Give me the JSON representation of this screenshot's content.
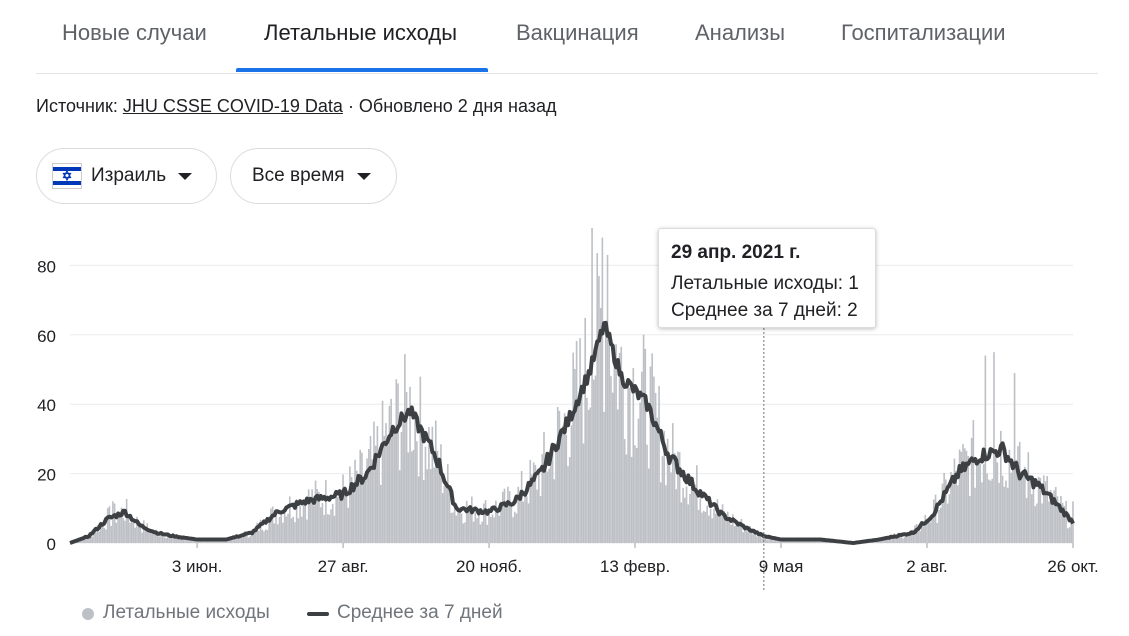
{
  "tabs": [
    {
      "label": "Новые случаи",
      "active": false
    },
    {
      "label": "Летальные исходы",
      "active": true
    },
    {
      "label": "Вакцинация",
      "active": false
    },
    {
      "label": "Анализы",
      "active": false
    },
    {
      "label": "Госпитализации",
      "active": false
    }
  ],
  "source": {
    "prefix": "Источник:",
    "link": "JHU CSSE COVID-19 Data",
    "updated": "· Обновлено 2 дня назад"
  },
  "filters": {
    "country": "Израиль",
    "country_flag_icon": "israel-flag-icon",
    "period": "Все время"
  },
  "tooltip": {
    "date": "29 апр. 2021 г.",
    "deaths_label": "Летальные исходы:",
    "deaths_value": "1",
    "avg_label": "Среднее за 7 дней:",
    "avg_value": "2"
  },
  "legend": {
    "bars": "Летальные исходы",
    "line": "Среднее за 7 дней"
  },
  "colors": {
    "bars": "#bdc1c6",
    "line": "#3c4043",
    "accent": "#1a73e8",
    "grid": "#ebebeb"
  },
  "chart_data": {
    "type": "bar",
    "ylim": [
      0,
      90
    ],
    "y_ticks": [
      0,
      20,
      40,
      60,
      80
    ],
    "x_tick_labels": [
      {
        "date": "2020-06-03",
        "label": "3 июн."
      },
      {
        "date": "2020-08-27",
        "label": "27 авг."
      },
      {
        "date": "2020-11-20",
        "label": "20 нояб."
      },
      {
        "date": "2021-02-13",
        "label": "13 февр."
      },
      {
        "date": "2021-05-09",
        "label": "9 мая"
      },
      {
        "date": "2021-08-02",
        "label": "2 авг."
      },
      {
        "date": "2021-10-26",
        "label": "26 окт."
      }
    ],
    "date_range": [
      "2020-03-21",
      "2021-10-26"
    ],
    "hover_date": "2021-04-29",
    "series": [
      {
        "name": "Среднее за 7 дней",
        "kind": "line",
        "points": [
          [
            "2020-03-21",
            0
          ],
          [
            "2020-04-01",
            2
          ],
          [
            "2020-04-12",
            7
          ],
          [
            "2020-04-22",
            9
          ],
          [
            "2020-05-01",
            5
          ],
          [
            "2020-05-10",
            3
          ],
          [
            "2020-05-20",
            2
          ],
          [
            "2020-06-03",
            1
          ],
          [
            "2020-06-20",
            1
          ],
          [
            "2020-07-05",
            3
          ],
          [
            "2020-07-20",
            9
          ],
          [
            "2020-08-05",
            12
          ],
          [
            "2020-08-27",
            14
          ],
          [
            "2020-09-10",
            20
          ],
          [
            "2020-09-25",
            33
          ],
          [
            "2020-10-05",
            38
          ],
          [
            "2020-10-20",
            25
          ],
          [
            "2020-11-01",
            10
          ],
          [
            "2020-11-20",
            9
          ],
          [
            "2020-12-05",
            12
          ],
          [
            "2020-12-20",
            20
          ],
          [
            "2021-01-05",
            35
          ],
          [
            "2021-01-18",
            50
          ],
          [
            "2021-01-26",
            63
          ],
          [
            "2021-02-05",
            48
          ],
          [
            "2021-02-20",
            40
          ],
          [
            "2021-03-05",
            25
          ],
          [
            "2021-03-20",
            16
          ],
          [
            "2021-04-05",
            8
          ],
          [
            "2021-04-20",
            4
          ],
          [
            "2021-04-29",
            2
          ],
          [
            "2021-05-09",
            1
          ],
          [
            "2021-06-01",
            1
          ],
          [
            "2021-06-20",
            0
          ],
          [
            "2021-07-05",
            1
          ],
          [
            "2021-07-25",
            3
          ],
          [
            "2021-08-05",
            8
          ],
          [
            "2021-08-20",
            20
          ],
          [
            "2021-09-01",
            25
          ],
          [
            "2021-09-15",
            27
          ],
          [
            "2021-09-25",
            20
          ],
          [
            "2021-10-05",
            17
          ],
          [
            "2021-10-15",
            12
          ],
          [
            "2021-10-26",
            6
          ]
        ]
      },
      {
        "name": "Летальные исходы",
        "kind": "bar",
        "peaks": [
          [
            "2020-04-15",
            12
          ],
          [
            "2020-09-28",
            46
          ],
          [
            "2020-10-05",
            45
          ],
          [
            "2021-01-19",
            91
          ],
          [
            "2021-01-25",
            88
          ],
          [
            "2021-01-28",
            83
          ],
          [
            "2021-09-05",
            54
          ],
          [
            "2021-09-10",
            55
          ],
          [
            "2021-09-22",
            49
          ],
          [
            "2021-10-26",
            12
          ]
        ]
      }
    ]
  }
}
